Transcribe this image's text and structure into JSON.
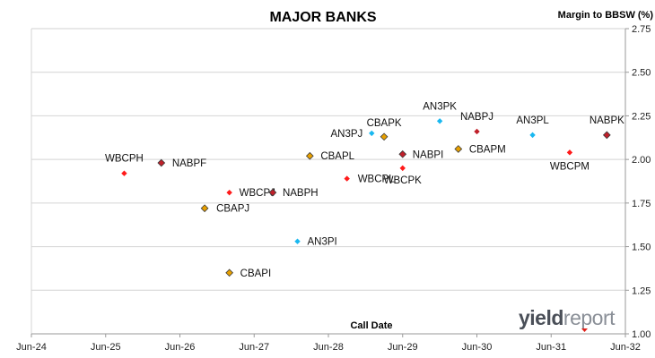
{
  "chart_data": {
    "type": "scatter",
    "title": "MAJOR BANKS",
    "ylabel": "Margin to BBSW (%)",
    "xlabel": "Call Date",
    "y_axis_position": "right",
    "ylim": [
      1.0,
      2.75
    ],
    "yticks": [
      "1.00",
      "1.25",
      "1.50",
      "1.75",
      "2.00",
      "2.25",
      "2.50",
      "2.75"
    ],
    "xlim": [
      "2024-06",
      "2032-06"
    ],
    "xticks": [
      "Jun-24",
      "Jun-25",
      "Jun-26",
      "Jun-27",
      "Jun-28",
      "Jun-29",
      "Jun-30",
      "Jun-31",
      "Jun-32"
    ],
    "grid": "horizontal",
    "legend": "none",
    "points": [
      {
        "label": "WBCPH",
        "x": "2025-09",
        "y": 1.92,
        "color": "#ff1a1a",
        "marker": "diamond-small"
      },
      {
        "label": "NABPF",
        "x": "2026-03",
        "y": 1.98,
        "color": "#c0202a",
        "marker": "diamond-outline"
      },
      {
        "label": "CBAPJ",
        "x": "2026-10",
        "y": 1.72,
        "color": "#e8a000",
        "marker": "diamond-outline"
      },
      {
        "label": "WBCPJ",
        "x": "2027-02",
        "y": 1.81,
        "color": "#ff1a1a",
        "marker": "diamond-small"
      },
      {
        "label": "CBAPI",
        "x": "2027-02",
        "y": 1.35,
        "color": "#e8a000",
        "marker": "diamond-outline"
      },
      {
        "label": "NABPH",
        "x": "2027-09",
        "y": 1.81,
        "color": "#c0202a",
        "marker": "diamond-outline"
      },
      {
        "label": "AN3PI",
        "x": "2028-01",
        "y": 1.53,
        "color": "#1ab8f0",
        "marker": "diamond-small"
      },
      {
        "label": "CBAPL",
        "x": "2028-03",
        "y": 2.02,
        "color": "#e8a000",
        "marker": "diamond-outline"
      },
      {
        "label": "WBCPL",
        "x": "2028-09",
        "y": 1.89,
        "color": "#ff1a1a",
        "marker": "diamond-small"
      },
      {
        "label": "AN3PJ",
        "x": "2029-01",
        "y": 2.15,
        "color": "#1ab8f0",
        "marker": "diamond-small"
      },
      {
        "label": "CBAPK",
        "x": "2029-03",
        "y": 2.13,
        "color": "#e8a000",
        "marker": "diamond-outline"
      },
      {
        "label": "NABPI",
        "x": "2029-06",
        "y": 2.03,
        "color": "#c0202a",
        "marker": "diamond-outline"
      },
      {
        "label": "WBCPK",
        "x": "2029-06",
        "y": 1.95,
        "color": "#ff1a1a",
        "marker": "diamond-small"
      },
      {
        "label": "AN3PK",
        "x": "2029-12",
        "y": 2.22,
        "color": "#1ab8f0",
        "marker": "diamond-small"
      },
      {
        "label": "CBAPM",
        "x": "2030-03",
        "y": 2.06,
        "color": "#e8a000",
        "marker": "diamond-outline"
      },
      {
        "label": "NABPJ",
        "x": "2030-06",
        "y": 2.16,
        "color": "#c0202a",
        "marker": "diamond-small"
      },
      {
        "label": "AN3PL",
        "x": "2031-03",
        "y": 2.14,
        "color": "#1ab8f0",
        "marker": "diamond-small"
      },
      {
        "label": "WBCPM",
        "x": "2031-09",
        "y": 2.04,
        "color": "#ff1a1a",
        "marker": "diamond-small"
      },
      {
        "label": "NABPK",
        "x": "2032-03",
        "y": 2.14,
        "color": "#c0202a",
        "marker": "diamond-outline"
      }
    ]
  },
  "logo": {
    "part1": "yield",
    "part2": "report",
    "accent_color": "#e0201a"
  }
}
